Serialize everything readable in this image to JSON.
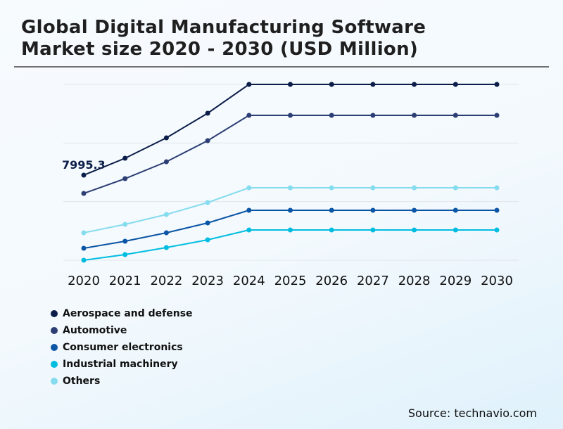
{
  "chart_data": {
    "type": "line",
    "title": "Global Digital Manufacturing Software Market size 2020 - 2030 (USD Million)",
    "xlabel": "",
    "ylabel": "",
    "x": [
      "2020",
      "2021",
      "2022",
      "2023",
      "2024",
      "2025",
      "2026",
      "2027",
      "2028",
      "2029",
      "2030"
    ],
    "ylim": [
      0,
      16520
    ],
    "grid": true,
    "legend_position": "bottom-left",
    "annotations": [
      {
        "series": "Aerospace and defense",
        "x": "2020",
        "text": "7995.3"
      }
    ],
    "series": [
      {
        "name": "Aerospace and defense",
        "color": "#0b1d48",
        "values": [
          7995.3,
          9582,
          11498,
          13811,
          16520,
          16520,
          16520,
          16520,
          16520,
          16520,
          16520
        ]
      },
      {
        "name": "Automotive",
        "color": "#2c3e74",
        "values": [
          6278,
          7665,
          9251,
          11234,
          13612,
          13612,
          13612,
          13612,
          13612,
          13612,
          13612
        ]
      },
      {
        "name": "Consumer electronics",
        "color": "#0a55a5",
        "values": [
          1123,
          1784,
          2577,
          3502,
          4692,
          4692,
          4692,
          4692,
          4692,
          4692,
          4692
        ]
      },
      {
        "name": "Industrial machinery",
        "color": "#00bde0",
        "values": [
          0,
          529,
          1189,
          1916,
          2841,
          2841,
          2841,
          2841,
          2841,
          2841,
          2841
        ]
      },
      {
        "name": "Others",
        "color": "#86dcef",
        "values": [
          2577,
          3370,
          4295,
          5419,
          6806,
          6806,
          6806,
          6806,
          6806,
          6806,
          6806
        ]
      }
    ]
  },
  "header": {
    "title_line1": "Global Digital Manufacturing Software",
    "title_line2": "Market size 2020 - 2030 (USD Million)"
  },
  "source": "Source: technavio.com"
}
